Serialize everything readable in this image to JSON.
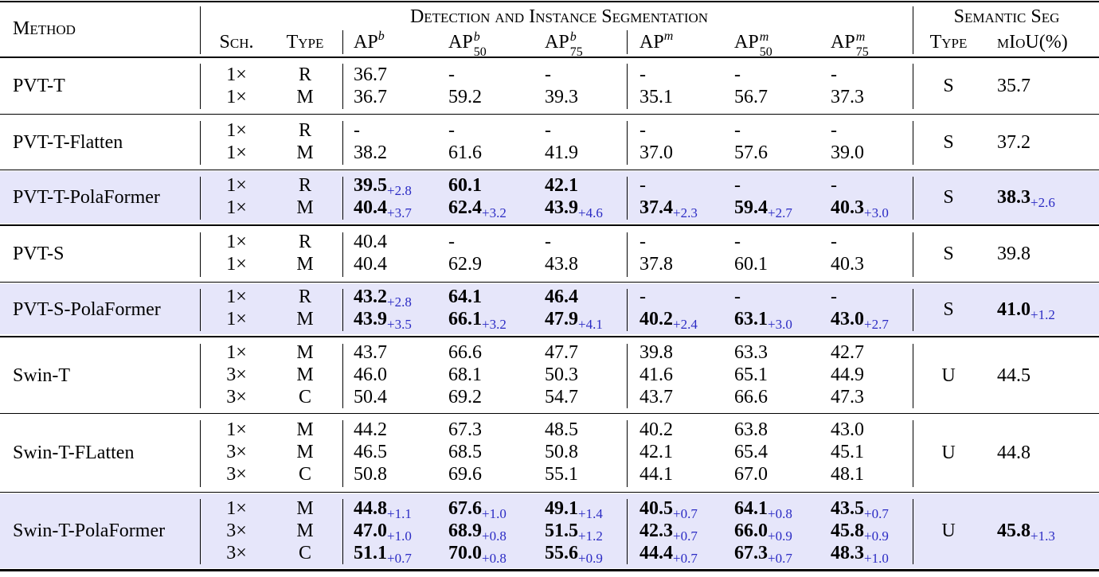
{
  "header": {
    "method": "Method",
    "group_det": "Detection and Instance Segmentation",
    "group_sem": "Semantic Seg",
    "sch": "Sch.",
    "type": "Type",
    "ap_base": "AP",
    "b": "b",
    "m": "m",
    "n50": "50",
    "n75": "75",
    "sem_type": "Type",
    "miou": "mIoU(%)"
  },
  "rows": [
    {
      "method": "PVT-T",
      "sem_type": "S",
      "miou": "35.7",
      "miou_delta": "",
      "hl": false,
      "lines": [
        {
          "sch": "1×",
          "type": "R",
          "v": [
            [
              "36.7",
              ""
            ],
            [
              "-",
              ""
            ],
            [
              "-",
              ""
            ],
            [
              "-",
              ""
            ],
            [
              "-",
              ""
            ],
            [
              "-",
              ""
            ]
          ]
        },
        {
          "sch": "1×",
          "type": "M",
          "v": [
            [
              "36.7",
              ""
            ],
            [
              "59.2",
              ""
            ],
            [
              "39.3",
              ""
            ],
            [
              "35.1",
              ""
            ],
            [
              "56.7",
              ""
            ],
            [
              "37.3",
              ""
            ]
          ]
        }
      ]
    },
    {
      "method": "PVT-T-Flatten",
      "sem_type": "S",
      "miou": "37.2",
      "miou_delta": "",
      "hl": false,
      "lines": [
        {
          "sch": "1×",
          "type": "R",
          "v": [
            [
              "-",
              ""
            ],
            [
              "-",
              ""
            ],
            [
              "-",
              ""
            ],
            [
              "-",
              ""
            ],
            [
              "-",
              ""
            ],
            [
              "-",
              ""
            ]
          ]
        },
        {
          "sch": "1×",
          "type": "M",
          "v": [
            [
              "38.2",
              ""
            ],
            [
              "61.6",
              ""
            ],
            [
              "41.9",
              ""
            ],
            [
              "37.0",
              ""
            ],
            [
              "57.6",
              ""
            ],
            [
              "39.0",
              ""
            ]
          ]
        }
      ]
    },
    {
      "method": "PVT-T-PolaFormer",
      "sem_type": "S",
      "miou": "38.3",
      "miou_delta": "+2.6",
      "hl": true,
      "lines": [
        {
          "sch": "1×",
          "type": "R",
          "v": [
            [
              "39.5",
              "+2.8"
            ],
            [
              "60.1",
              ""
            ],
            [
              "42.1",
              ""
            ],
            [
              "-",
              ""
            ],
            [
              "-",
              ""
            ],
            [
              "-",
              ""
            ]
          ]
        },
        {
          "sch": "1×",
          "type": "M",
          "v": [
            [
              "40.4",
              "+3.7"
            ],
            [
              "62.4",
              "+3.2"
            ],
            [
              "43.9",
              "+4.6"
            ],
            [
              "37.4",
              "+2.3"
            ],
            [
              "59.4",
              "+2.7"
            ],
            [
              "40.3",
              "+3.0"
            ]
          ]
        }
      ]
    },
    {
      "method": "PVT-S",
      "sem_type": "S",
      "miou": "39.8",
      "miou_delta": "",
      "hl": false,
      "lines": [
        {
          "sch": "1×",
          "type": "R",
          "v": [
            [
              "40.4",
              ""
            ],
            [
              "-",
              ""
            ],
            [
              "-",
              ""
            ],
            [
              "-",
              ""
            ],
            [
              "-",
              ""
            ],
            [
              "-",
              ""
            ]
          ]
        },
        {
          "sch": "1×",
          "type": "M",
          "v": [
            [
              "40.4",
              ""
            ],
            [
              "62.9",
              ""
            ],
            [
              "43.8",
              ""
            ],
            [
              "37.8",
              ""
            ],
            [
              "60.1",
              ""
            ],
            [
              "40.3",
              ""
            ]
          ]
        }
      ]
    },
    {
      "method": "PVT-S-PolaFormer",
      "sem_type": "S",
      "miou": "41.0",
      "miou_delta": "+1.2",
      "hl": true,
      "lines": [
        {
          "sch": "1×",
          "type": "R",
          "v": [
            [
              "43.2",
              "+2.8"
            ],
            [
              "64.1",
              ""
            ],
            [
              "46.4",
              ""
            ],
            [
              "-",
              ""
            ],
            [
              "-",
              ""
            ],
            [
              "-",
              ""
            ]
          ]
        },
        {
          "sch": "1×",
          "type": "M",
          "v": [
            [
              "43.9",
              "+3.5"
            ],
            [
              "66.1",
              "+3.2"
            ],
            [
              "47.9",
              "+4.1"
            ],
            [
              "40.2",
              "+2.4"
            ],
            [
              "63.1",
              "+3.0"
            ],
            [
              "43.0",
              "+2.7"
            ]
          ]
        }
      ]
    },
    {
      "method": "Swin-T",
      "sem_type": "U",
      "miou": "44.5",
      "miou_delta": "",
      "hl": false,
      "lines": [
        {
          "sch": "1×",
          "type": "M",
          "v": [
            [
              "43.7",
              ""
            ],
            [
              "66.6",
              ""
            ],
            [
              "47.7",
              ""
            ],
            [
              "39.8",
              ""
            ],
            [
              "63.3",
              ""
            ],
            [
              "42.7",
              ""
            ]
          ]
        },
        {
          "sch": "3×",
          "type": "M",
          "v": [
            [
              "46.0",
              ""
            ],
            [
              "68.1",
              ""
            ],
            [
              "50.3",
              ""
            ],
            [
              "41.6",
              ""
            ],
            [
              "65.1",
              ""
            ],
            [
              "44.9",
              ""
            ]
          ]
        },
        {
          "sch": "3×",
          "type": "C",
          "v": [
            [
              "50.4",
              ""
            ],
            [
              "69.2",
              ""
            ],
            [
              "54.7",
              ""
            ],
            [
              "43.7",
              ""
            ],
            [
              "66.6",
              ""
            ],
            [
              "47.3",
              ""
            ]
          ]
        }
      ]
    },
    {
      "method": "Swin-T-FLatten",
      "sem_type": "U",
      "miou": "44.8",
      "miou_delta": "",
      "hl": false,
      "lines": [
        {
          "sch": "1×",
          "type": "M",
          "v": [
            [
              "44.2",
              ""
            ],
            [
              "67.3",
              ""
            ],
            [
              "48.5",
              ""
            ],
            [
              "40.2",
              ""
            ],
            [
              "63.8",
              ""
            ],
            [
              "43.0",
              ""
            ]
          ]
        },
        {
          "sch": "3×",
          "type": "M",
          "v": [
            [
              "46.5",
              ""
            ],
            [
              "68.5",
              ""
            ],
            [
              "50.8",
              ""
            ],
            [
              "42.1",
              ""
            ],
            [
              "65.4",
              ""
            ],
            [
              "45.1",
              ""
            ]
          ]
        },
        {
          "sch": "3×",
          "type": "C",
          "v": [
            [
              "50.8",
              ""
            ],
            [
              "69.6",
              ""
            ],
            [
              "55.1",
              ""
            ],
            [
              "44.1",
              ""
            ],
            [
              "67.0",
              ""
            ],
            [
              "48.1",
              ""
            ]
          ]
        }
      ]
    },
    {
      "method": "Swin-T-PolaFormer",
      "sem_type": "U",
      "miou": "45.8",
      "miou_delta": "+1.3",
      "hl": true,
      "lines": [
        {
          "sch": "1×",
          "type": "M",
          "v": [
            [
              "44.8",
              "+1.1"
            ],
            [
              "67.6",
              "+1.0"
            ],
            [
              "49.1",
              "+1.4"
            ],
            [
              "40.5",
              "+0.7"
            ],
            [
              "64.1",
              "+0.8"
            ],
            [
              "43.5",
              "+0.7"
            ]
          ]
        },
        {
          "sch": "3×",
          "type": "M",
          "v": [
            [
              "47.0",
              "+1.0"
            ],
            [
              "68.9",
              "+0.8"
            ],
            [
              "51.5",
              "+1.2"
            ],
            [
              "42.3",
              "+0.7"
            ],
            [
              "66.0",
              "+0.9"
            ],
            [
              "45.8",
              "+0.9"
            ]
          ]
        },
        {
          "sch": "3×",
          "type": "C",
          "v": [
            [
              "51.1",
              "+0.7"
            ],
            [
              "70.0",
              "+0.8"
            ],
            [
              "55.6",
              "+0.9"
            ],
            [
              "44.4",
              "+0.7"
            ],
            [
              "67.3",
              "+0.7"
            ],
            [
              "48.3",
              "+1.0"
            ]
          ]
        }
      ]
    }
  ]
}
